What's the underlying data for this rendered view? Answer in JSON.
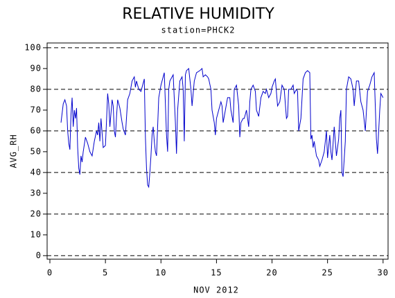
{
  "chart_data": {
    "type": "line",
    "title": "RELATIVE HUMIDITY",
    "subtitle": "station=PHCK2",
    "x_label": "NOV 2012",
    "y_label": "AVG_RH",
    "xlim": [
      -0.25,
      30.45
    ],
    "ylim": [
      -1.7,
      102.3
    ],
    "xticks": [
      0,
      5,
      10,
      15,
      20,
      25,
      30
    ],
    "yticks": [
      0,
      10,
      20,
      30,
      40,
      50,
      60,
      70,
      80,
      90,
      100
    ],
    "grid_yticks": [
      0,
      20,
      40,
      60,
      80,
      100
    ],
    "x": [
      1.0,
      1.2,
      1.35,
      1.5,
      1.6,
      1.7,
      1.8,
      1.9,
      2.0,
      2.1,
      2.2,
      2.3,
      2.4,
      2.5,
      2.6,
      2.7,
      2.8,
      2.9,
      3.0,
      3.2,
      3.4,
      3.6,
      3.8,
      4.0,
      4.2,
      4.3,
      4.4,
      4.5,
      4.6,
      4.8,
      5.0,
      5.1,
      5.2,
      5.3,
      5.4,
      5.6,
      5.7,
      5.8,
      5.9,
      6.0,
      6.1,
      6.3,
      6.5,
      6.6,
      6.8,
      7.0,
      7.2,
      7.4,
      7.6,
      7.7,
      7.8,
      8.0,
      8.2,
      8.4,
      8.5,
      8.6,
      8.7,
      8.8,
      8.9,
      9.0,
      9.1,
      9.2,
      9.3,
      9.4,
      9.5,
      9.6,
      9.7,
      9.8,
      10.0,
      10.2,
      10.3,
      10.5,
      10.6,
      10.7,
      10.8,
      11.0,
      11.1,
      11.3,
      11.4,
      11.5,
      11.7,
      11.9,
      12.0,
      12.1,
      12.2,
      12.3,
      12.5,
      12.7,
      12.8,
      13.0,
      13.2,
      13.5,
      13.7,
      13.8,
      14.0,
      14.2,
      14.3,
      14.5,
      14.6,
      14.8,
      14.9,
      15.0,
      15.2,
      15.4,
      15.5,
      15.6,
      15.8,
      16.0,
      16.2,
      16.3,
      16.5,
      16.6,
      16.8,
      17.0,
      17.1,
      17.2,
      17.4,
      17.5,
      17.7,
      17.9,
      18.0,
      18.1,
      18.3,
      18.5,
      18.6,
      18.8,
      19.0,
      19.2,
      19.4,
      19.5,
      19.7,
      19.9,
      20.0,
      20.2,
      20.3,
      20.5,
      20.7,
      20.9,
      21.1,
      21.3,
      21.4,
      21.5,
      21.7,
      21.9,
      22.0,
      22.2,
      22.3,
      22.4,
      22.6,
      22.8,
      23.0,
      23.2,
      23.4,
      23.5,
      23.6,
      23.7,
      23.8,
      24.0,
      24.2,
      24.3,
      24.5,
      24.7,
      24.9,
      25.0,
      25.2,
      25.3,
      25.4,
      25.6,
      25.8,
      26.0,
      26.1,
      26.2,
      26.3,
      26.4,
      26.6,
      26.7,
      26.9,
      27.1,
      27.3,
      27.4,
      27.6,
      27.8,
      28.0,
      28.2,
      28.4,
      28.6,
      28.8,
      29.0,
      29.2,
      29.4,
      29.5,
      29.7,
      29.8,
      30.0
    ],
    "series": [
      {
        "color": "#0000cc",
        "values": [
          64,
          73,
          75,
          72,
          60,
          54,
          51,
          68,
          76,
          62,
          70,
          66,
          71,
          52,
          42,
          39,
          48,
          45,
          50,
          57,
          54,
          50,
          48,
          55,
          60,
          58,
          64,
          55,
          66,
          52,
          53,
          65,
          78,
          73,
          62,
          75,
          72,
          60,
          57,
          67,
          75,
          71,
          64,
          61,
          58,
          75,
          78,
          84,
          86,
          81,
          84,
          80,
          79,
          83,
          85,
          57,
          42,
          34,
          33,
          40,
          48,
          58,
          62,
          55,
          50,
          48,
          62,
          76,
          82,
          86,
          88,
          58,
          50,
          80,
          84,
          86,
          87,
          64,
          49,
          70,
          84,
          86,
          80,
          55,
          87,
          89,
          90,
          80,
          72,
          84,
          88,
          89,
          90,
          86,
          87,
          86,
          85,
          80,
          70,
          64,
          58,
          66,
          70,
          74,
          72,
          64,
          70,
          76,
          76,
          70,
          64,
          80,
          82,
          72,
          57,
          64,
          66,
          66,
          70,
          62,
          74,
          80,
          82,
          79,
          70,
          67,
          76,
          79,
          78,
          80,
          76,
          78,
          81,
          84,
          85,
          72,
          74,
          82,
          80,
          66,
          67,
          80,
          80,
          82,
          78,
          80,
          79,
          60,
          66,
          85,
          88,
          89,
          88,
          56,
          58,
          52,
          55,
          48,
          46,
          43,
          46,
          50,
          60,
          47,
          58,
          50,
          46,
          62,
          48,
          56,
          66,
          70,
          40,
          38,
          55,
          80,
          86,
          85,
          80,
          72,
          84,
          84,
          74,
          70,
          60,
          79,
          82,
          86,
          88,
          56,
          49,
          70,
          78,
          76
        ]
      }
    ]
  }
}
